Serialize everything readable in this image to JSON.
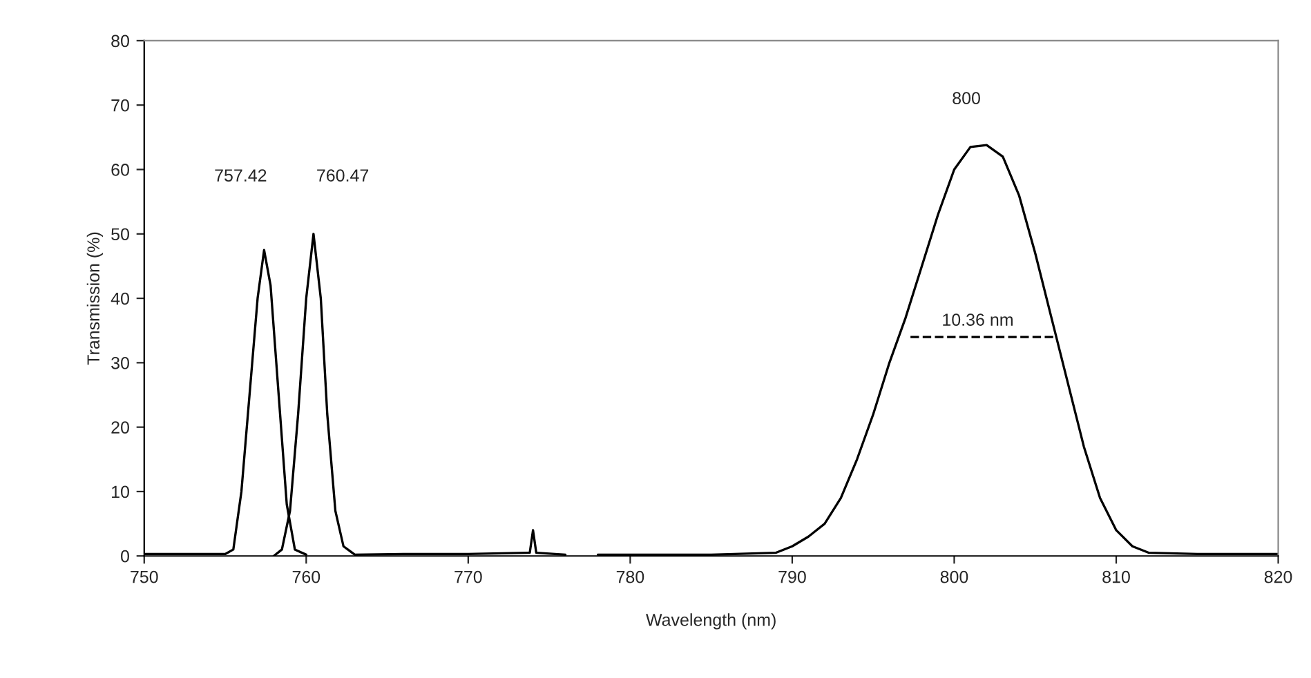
{
  "chart_data": {
    "type": "line",
    "xlabel": "Wavelength (nm)",
    "ylabel": "Transmission (%)",
    "xlim": [
      750,
      820
    ],
    "xticks": [
      750,
      760,
      770,
      780,
      790,
      800,
      810,
      820
    ],
    "ylim": [
      0,
      80
    ],
    "yticks": [
      0,
      10,
      20,
      30,
      40,
      50,
      60,
      70,
      80
    ],
    "grid": false,
    "legend": false,
    "series": [
      {
        "color": "#000000",
        "x": [
          750,
          752,
          755,
          755.5,
          756,
          756.5,
          757,
          757.4,
          757.8,
          758.3,
          758.8,
          759.3,
          760
        ],
        "values": [
          0.3,
          0.3,
          0.3,
          1,
          10,
          25,
          40,
          47.5,
          42,
          25,
          8,
          1,
          0.2
        ]
      },
      {
        "color": "#000000",
        "x": [
          758,
          758.5,
          759,
          759.5,
          760,
          760.45,
          760.9,
          761.3,
          761.8,
          762.3,
          763,
          766,
          770,
          773.8,
          774,
          774.2,
          776
        ],
        "values": [
          0,
          1,
          7,
          22,
          40,
          50,
          40,
          22,
          7,
          1.5,
          0.2,
          0.3,
          0.3,
          0.5,
          4,
          0.5,
          0.2
        ]
      },
      {
        "color": "#000000",
        "x": [
          778,
          785,
          789,
          790,
          791,
          792,
          793,
          794,
          795,
          796,
          797,
          798,
          799,
          800,
          801,
          802,
          803,
          804,
          805,
          806,
          807,
          808,
          809,
          810,
          811,
          812,
          815,
          820
        ],
        "values": [
          0.2,
          0.2,
          0.5,
          1.5,
          3,
          5,
          9,
          15,
          22,
          30,
          37,
          45,
          53,
          60,
          63.5,
          63.8,
          62,
          56,
          47,
          37,
          27,
          17,
          9,
          4,
          1.5,
          0.5,
          0.3,
          0.3
        ]
      },
      {
        "color": "#000000",
        "line_style": "dashed",
        "x": [
          797.3,
          806.2
        ],
        "values": [
          34,
          34
        ]
      }
    ],
    "annotations": [
      "757.42",
      "760.47",
      "800",
      "10.36 nm"
    ]
  }
}
